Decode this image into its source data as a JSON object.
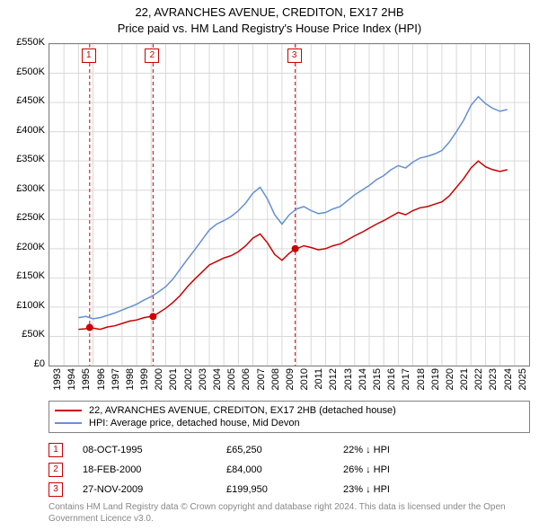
{
  "title1": "22, AVRANCHES AVENUE, CREDITON, EX17 2HB",
  "title2": "Price paid vs. HM Land Registry's House Price Index (HPI)",
  "chart": {
    "type": "line",
    "x_range": [
      1993,
      2026
    ],
    "y_range": [
      0,
      550000
    ],
    "y_ticks": [
      0,
      50000,
      100000,
      150000,
      200000,
      250000,
      300000,
      350000,
      400000,
      450000,
      500000,
      550000
    ],
    "y_tick_labels": [
      "£0",
      "£50K",
      "£100K",
      "£150K",
      "£200K",
      "£250K",
      "£300K",
      "£350K",
      "£400K",
      "£450K",
      "£500K",
      "£550K"
    ],
    "x_ticks": [
      1993,
      1994,
      1995,
      1996,
      1997,
      1998,
      1999,
      2000,
      2001,
      2002,
      2003,
      2004,
      2005,
      2006,
      2007,
      2008,
      2009,
      2010,
      2011,
      2012,
      2013,
      2014,
      2015,
      2016,
      2017,
      2018,
      2019,
      2020,
      2021,
      2022,
      2023,
      2024,
      2025
    ],
    "x_tick_labels": [
      "1993",
      "1994",
      "1995",
      "1996",
      "1997",
      "1998",
      "1999",
      "2000",
      "2001",
      "2002",
      "2003",
      "2004",
      "2005",
      "2006",
      "2007",
      "2008",
      "2009",
      "2010",
      "2011",
      "2012",
      "2013",
      "2014",
      "2015",
      "2016",
      "2017",
      "2018",
      "2019",
      "2020",
      "2021",
      "2022",
      "2023",
      "2024",
      "2025"
    ],
    "grid": true,
    "grid_color": "#d9d9d9",
    "grid_width": 1,
    "background_color": "#ffffff",
    "axis_color": "#808080",
    "label_fontsize": 11,
    "series": [
      {
        "id": "red",
        "label": "22, AVRANCHES AVENUE, CREDITON, EX17 2HB (detached house)",
        "color": "#cc0000",
        "width": 1.5,
        "data": [
          [
            1995.0,
            62000
          ],
          [
            1995.5,
            63000
          ],
          [
            1995.77,
            65250
          ],
          [
            1996.0,
            64000
          ],
          [
            1996.5,
            62000
          ],
          [
            1997.0,
            66000
          ],
          [
            1997.5,
            68000
          ],
          [
            1998.0,
            72000
          ],
          [
            1998.5,
            76000
          ],
          [
            1999.0,
            78000
          ],
          [
            1999.5,
            82000
          ],
          [
            2000.0,
            84000
          ],
          [
            2000.13,
            84000
          ],
          [
            2000.5,
            90000
          ],
          [
            2001.0,
            98000
          ],
          [
            2001.5,
            108000
          ],
          [
            2002.0,
            120000
          ],
          [
            2002.5,
            135000
          ],
          [
            2003.0,
            148000
          ],
          [
            2003.5,
            160000
          ],
          [
            2004.0,
            172000
          ],
          [
            2004.5,
            178000
          ],
          [
            2005.0,
            184000
          ],
          [
            2005.5,
            188000
          ],
          [
            2006.0,
            195000
          ],
          [
            2006.5,
            205000
          ],
          [
            2007.0,
            218000
          ],
          [
            2007.5,
            225000
          ],
          [
            2008.0,
            210000
          ],
          [
            2008.5,
            190000
          ],
          [
            2009.0,
            180000
          ],
          [
            2009.5,
            192000
          ],
          [
            2009.91,
            199950
          ],
          [
            2010.0,
            200000
          ],
          [
            2010.5,
            205000
          ],
          [
            2011.0,
            202000
          ],
          [
            2011.5,
            198000
          ],
          [
            2012.0,
            200000
          ],
          [
            2012.5,
            205000
          ],
          [
            2013.0,
            208000
          ],
          [
            2013.5,
            215000
          ],
          [
            2014.0,
            222000
          ],
          [
            2014.5,
            228000
          ],
          [
            2015.0,
            235000
          ],
          [
            2015.5,
            242000
          ],
          [
            2016.0,
            248000
          ],
          [
            2016.5,
            255000
          ],
          [
            2017.0,
            262000
          ],
          [
            2017.5,
            258000
          ],
          [
            2018.0,
            265000
          ],
          [
            2018.5,
            270000
          ],
          [
            2019.0,
            272000
          ],
          [
            2019.5,
            276000
          ],
          [
            2020.0,
            280000
          ],
          [
            2020.5,
            290000
          ],
          [
            2021.0,
            305000
          ],
          [
            2021.5,
            320000
          ],
          [
            2022.0,
            338000
          ],
          [
            2022.5,
            350000
          ],
          [
            2023.0,
            340000
          ],
          [
            2023.5,
            335000
          ],
          [
            2024.0,
            332000
          ],
          [
            2024.5,
            335000
          ]
        ]
      },
      {
        "id": "blue",
        "label": "HPI: Average price, detached house, Mid Devon",
        "color": "#6590d2",
        "width": 1.5,
        "data": [
          [
            1995.0,
            82000
          ],
          [
            1995.5,
            84000
          ],
          [
            1996.0,
            80000
          ],
          [
            1996.5,
            82000
          ],
          [
            1997.0,
            86000
          ],
          [
            1997.5,
            90000
          ],
          [
            1998.0,
            95000
          ],
          [
            1998.5,
            100000
          ],
          [
            1999.0,
            105000
          ],
          [
            1999.5,
            112000
          ],
          [
            2000.0,
            118000
          ],
          [
            2000.5,
            126000
          ],
          [
            2001.0,
            135000
          ],
          [
            2001.5,
            148000
          ],
          [
            2002.0,
            165000
          ],
          [
            2002.5,
            182000
          ],
          [
            2003.0,
            198000
          ],
          [
            2003.5,
            215000
          ],
          [
            2004.0,
            232000
          ],
          [
            2004.5,
            242000
          ],
          [
            2005.0,
            248000
          ],
          [
            2005.5,
            255000
          ],
          [
            2006.0,
            265000
          ],
          [
            2006.5,
            278000
          ],
          [
            2007.0,
            295000
          ],
          [
            2007.5,
            305000
          ],
          [
            2008.0,
            285000
          ],
          [
            2008.5,
            258000
          ],
          [
            2009.0,
            242000
          ],
          [
            2009.5,
            258000
          ],
          [
            2010.0,
            268000
          ],
          [
            2010.5,
            272000
          ],
          [
            2011.0,
            265000
          ],
          [
            2011.5,
            260000
          ],
          [
            2012.0,
            262000
          ],
          [
            2012.5,
            268000
          ],
          [
            2013.0,
            272000
          ],
          [
            2013.5,
            282000
          ],
          [
            2014.0,
            292000
          ],
          [
            2014.5,
            300000
          ],
          [
            2015.0,
            308000
          ],
          [
            2015.5,
            318000
          ],
          [
            2016.0,
            325000
          ],
          [
            2016.5,
            335000
          ],
          [
            2017.0,
            342000
          ],
          [
            2017.5,
            338000
          ],
          [
            2018.0,
            348000
          ],
          [
            2018.5,
            355000
          ],
          [
            2019.0,
            358000
          ],
          [
            2019.5,
            362000
          ],
          [
            2020.0,
            368000
          ],
          [
            2020.5,
            382000
          ],
          [
            2021.0,
            400000
          ],
          [
            2021.5,
            420000
          ],
          [
            2022.0,
            445000
          ],
          [
            2022.5,
            460000
          ],
          [
            2023.0,
            448000
          ],
          [
            2023.5,
            440000
          ],
          [
            2024.0,
            435000
          ],
          [
            2024.5,
            438000
          ]
        ]
      }
    ],
    "sale_markers": [
      {
        "label": "1",
        "x": 1995.77,
        "y": 65250
      },
      {
        "label": "2",
        "x": 2000.13,
        "y": 84000
      },
      {
        "label": "3",
        "x": 2009.91,
        "y": 199950
      }
    ],
    "sale_marker_color": "#cc0000",
    "sale_marker_line_color": "#cc0000",
    "sale_marker_line_dash": "4,3",
    "sale_dot_radius": 4
  },
  "legend": {
    "items": [
      {
        "color": "#cc0000",
        "label": "22, AVRANCHES AVENUE, CREDITON, EX17 2HB (detached house)"
      },
      {
        "color": "#6590d2",
        "label": "HPI: Average price, detached house, Mid Devon"
      }
    ]
  },
  "table": {
    "rows": [
      {
        "marker": "1",
        "date": "08-OCT-1995",
        "price": "£65,250",
        "hpi": "22% ↓ HPI"
      },
      {
        "marker": "2",
        "date": "18-FEB-2000",
        "price": "£84,000",
        "hpi": "26% ↓ HPI"
      },
      {
        "marker": "3",
        "date": "27-NOV-2009",
        "price": "£199,950",
        "hpi": "23% ↓ HPI"
      }
    ]
  },
  "footnote": "Contains HM Land Registry data © Crown copyright and database right 2024. This data is licensed under the Open Government Licence v3.0."
}
